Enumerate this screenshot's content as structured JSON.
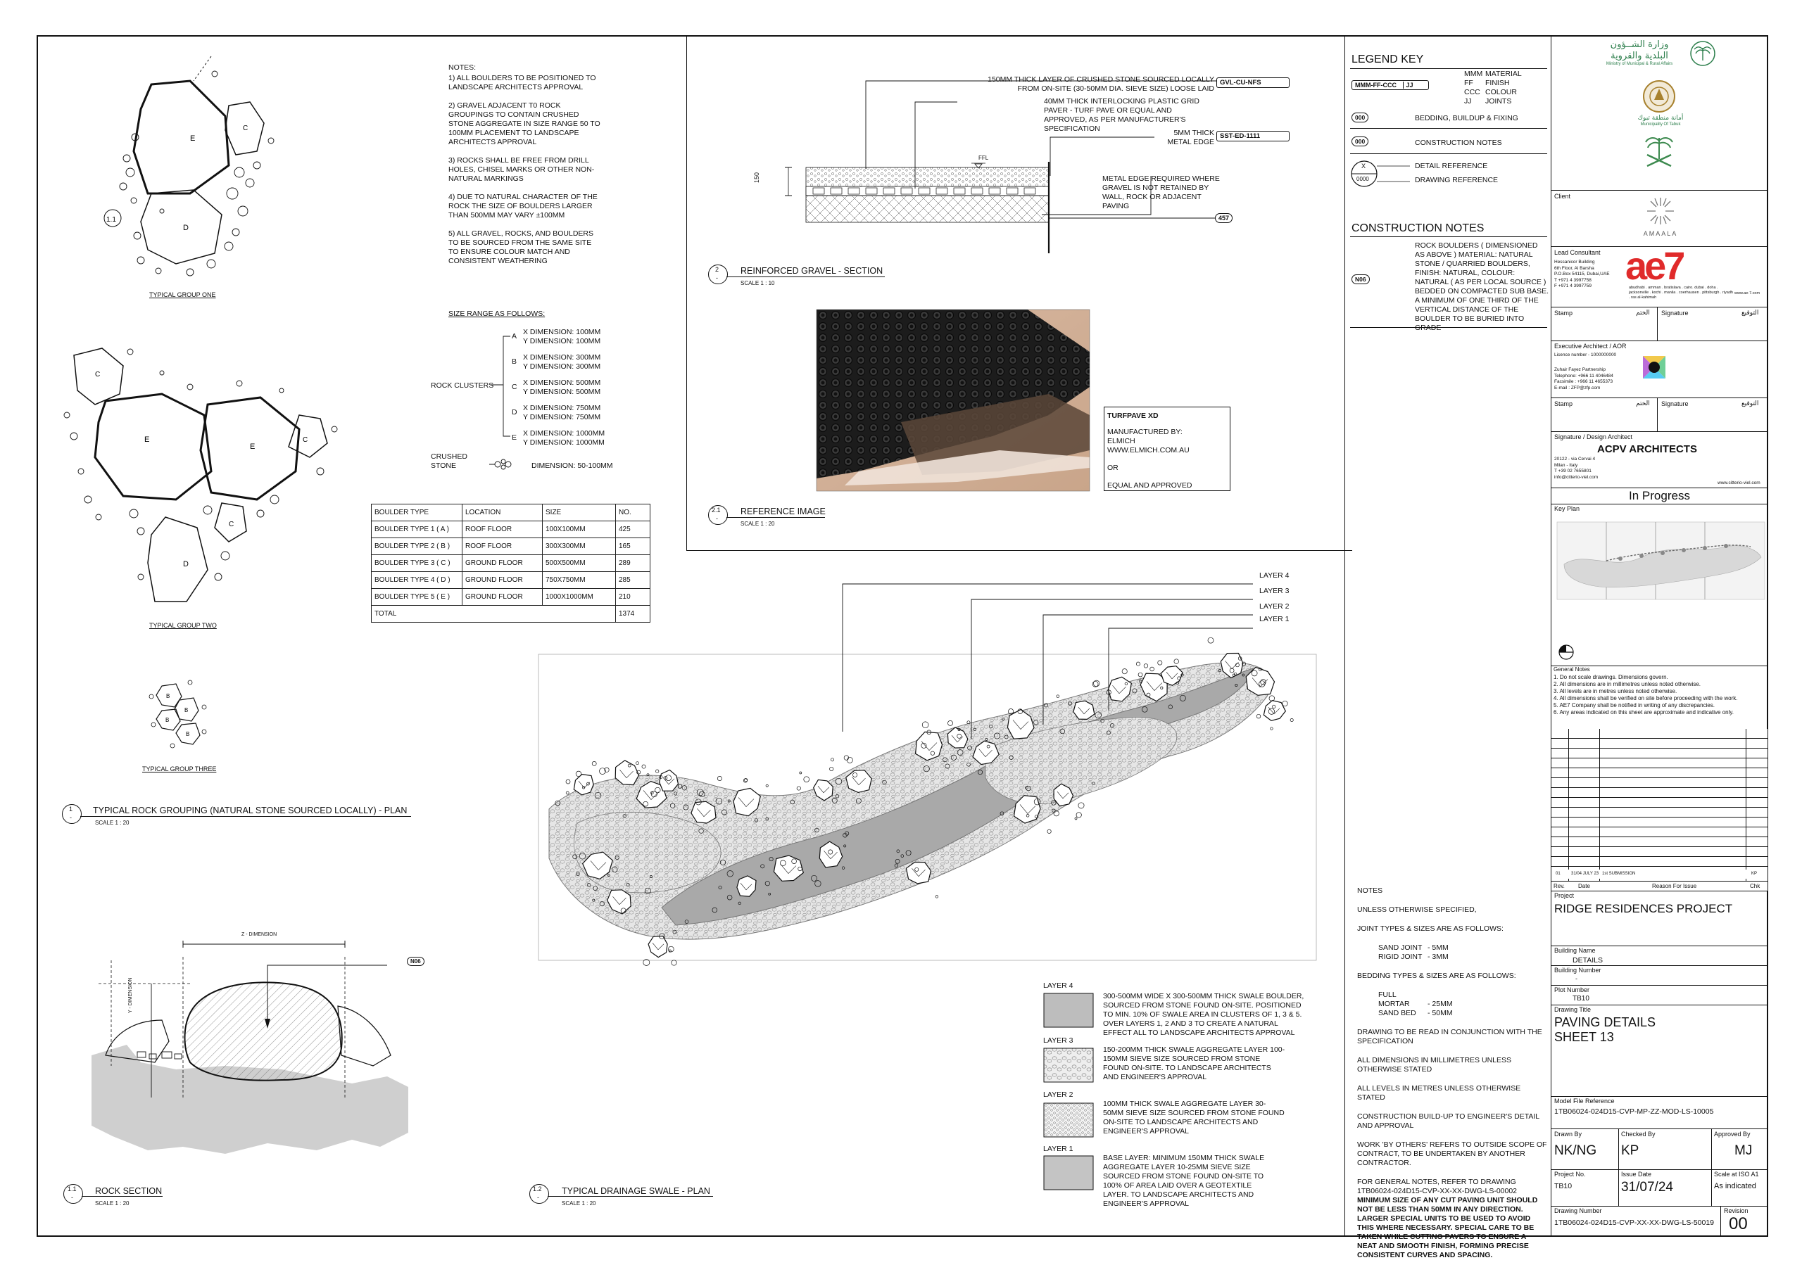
{
  "notes_plan": {
    "heading": "NOTES:",
    "items": [
      "1) ALL BOULDERS TO BE POSITIONED TO LANDSCAPE ARCHITECTS APPROVAL",
      "2) GRAVEL ADJACENT T0 ROCK GROUPINGS TO CONTAIN CRUSHED STONE AGGREGATE IN SIZE RANGE 50 TO 100mm PLACEMENT TO LANDSCAPE ARCHITECTS APPROVAL",
      "3) ROCKS SHALL BE FREE FROM DRILL HOLES, CHISEL MARKS OR OTHER NON-NATURAL MARKINGS",
      "4) DUE TO NATURAL CHARACTER OF THE ROCK THE SIZE OF BOULDERS LARGER THAN 500mm MAY VARY ±100mm",
      "5) ALL GRAVEL, ROCKS, AND BOULDERS TO BE SOURCED FROM THE SAME SITE TO ENSURE COLOUR MATCH AND CONSISTENT WEATHERING"
    ]
  },
  "size_range": {
    "heading": "SIZE RANGE AS FOLLOWS:",
    "clusters_label": "ROCK CLUSTERS",
    "crushed_label": "CRUSHED STONE",
    "crushed_dim": "DIMENSION: 50-100mm",
    "rows": [
      {
        "letter": "A",
        "x": "X DIMENSION: 100mm",
        "y": "Y DIMENSION: 100mm"
      },
      {
        "letter": "B",
        "x": "X DIMENSION: 300mm",
        "y": "Y DIMENSION: 300mm"
      },
      {
        "letter": "C",
        "x": "X DIMENSION: 500mm",
        "y": "Y DIMENSION: 500mm"
      },
      {
        "letter": "D",
        "x": "X DIMENSION: 750mm",
        "y": "Y DIMENSION: 750mm"
      },
      {
        "letter": "E",
        "x": "X DIMENSION: 1000mm",
        "y": "Y DIMENSION: 1000mm"
      }
    ]
  },
  "boulder_table": {
    "headers": [
      "BOULDER TYPE",
      "LOCATION",
      "SIZE",
      "NO."
    ],
    "rows": [
      [
        "BOULDER TYPE 1 ( A )",
        "ROOF FLOOR",
        "100X100mm",
        "425"
      ],
      [
        "BOULDER TYPE 2 ( B )",
        "ROOF FLOOR",
        "300X300mm",
        "165"
      ],
      [
        "BOULDER TYPE 3 ( C )",
        "GROUND FLOOR",
        "500X500mm",
        "289"
      ],
      [
        "BOULDER TYPE 4 ( D )",
        "GROUND FLOOR",
        "750X750mm",
        "285"
      ],
      [
        "BOULDER TYPE 5 ( E )",
        "GROUND FLOOR",
        "1000X1000mm",
        "210"
      ]
    ],
    "total_label": "TOTAL",
    "total_value": "1374"
  },
  "group_labels": {
    "one": "TYPICAL GROUP ONE",
    "two": "TYPICAL GROUP TWO",
    "three": "TYPICAL GROUP THREE"
  },
  "view_titles": {
    "v1": {
      "num": "1",
      "sub": "-",
      "title": "TYPICAL ROCK GROUPING (NATURAL STONE SOURCED LOCALLY) - PLAN",
      "scale": "SCALE   1 : 20"
    },
    "v2": {
      "num": "2",
      "sub": "-",
      "title": "REINFORCED GRAVEL - SECTION",
      "scale": "SCALE   1 : 10"
    },
    "v21": {
      "num": "2.1",
      "sub": "-",
      "title": "REFERENCE IMAGE",
      "scale": "SCALE   1 : 20"
    },
    "v11": {
      "num": "1.1",
      "sub": "-",
      "title": "ROCK SECTION",
      "scale": "SCALE   1 : 20"
    },
    "v12": {
      "num": "1.2",
      "sub": "-",
      "title": "TYPICAL DRAINAGE SWALE - PLAN",
      "scale": "SCALE   1 : 20"
    }
  },
  "section_callouts": {
    "c1": "150mm THICK LAYER OF CRUSHED STONE SOURCED LOCALLY FROM ON-SITE (30-50mm DIA. SIEVE SIZE) LOOSE LAID",
    "c1_tag": "GVL-CU-NFS",
    "c2": "40mm THICK INTERLOCKING PLASTIC GRID PAVER - TURF PAVE OR EQUAL AND APPROVED, AS PER MANUFACTURER'S SPECIFICATION",
    "c3": "5mm THICK METAL EDGE",
    "c3_tag": "SST-ED-1111",
    "c4": "METAL EDGE REQUIRED WHERE GRAVEL IS NOT RETAINED BY WALL, ROCK OR ADJACENT PAVING",
    "ffl": "FFL",
    "dim150": "150",
    "tag457": "457"
  },
  "reference_box": {
    "title": "TURFPAVE XD",
    "l1": "MANUFACTURED BY:",
    "l2": "ELMICH",
    "l3": "WWW.ELMICH.COM.AU",
    "l4": "OR",
    "l5": "EQUAL AND APPROVED"
  },
  "swale_layers": {
    "l4": "LAYER 4",
    "l3": "LAYER 3",
    "l2": "LAYER 2",
    "l1": "LAYER 1"
  },
  "layer_legend": [
    {
      "name": "LAYER 4",
      "desc": "300-500mm WIDE X 300-500mm THICK SWALE BOULDER, SOURCED FROM STONE FOUND ON-SITE. POSITIONED TO MIN. 10% OF SWALE AREA IN CLUSTERS OF 1, 3 & 5. OVER LAYERS 1, 2 AND 3 TO CREATE A NATURAL EFFECT ALL TO LANDSCAPE ARCHITECTS APPROVAL"
    },
    {
      "name": "LAYER 3",
      "desc": "150-200mm THICK SWALE AGGREGATE LAYER 100-150mm SIEVE SIZE SOURCED FROM STONE FOUND ON-SITE. TO LANDSCAPE ARCHITECTS AND ENGINEER'S APPROVAL"
    },
    {
      "name": "LAYER 2",
      "desc": "100mm THICK SWALE AGGREGATE LAYER 30-50mm SIEVE SIZE SOURCED FROM STONE FOUND ON-SITE TO LANDSCAPE ARCHITECTS AND ENGINEER'S APPROVAL"
    },
    {
      "name": "LAYER 1",
      "desc": "BASE LAYER: MINIMUM 150mm THICK SWALE AGGREGATE LAYER 10-25mm SIEVE SIZE SOURCED FROM STONE FOUND ON-SITE TO 100% OF AREA LAID OVER A GEOTEXTILE LAYER. TO LANDSCAPE ARCHITECTS AND ENGINEER'S APPROVAL"
    }
  ],
  "rock_section": {
    "z_dim": "Z - DIMENSION",
    "y_dim": "Y - DIMENSION",
    "tag": "N06"
  },
  "legend_key": {
    "heading": "LEGEND KEY",
    "code": "MMM-FF-CCC",
    "code_jj": "JJ",
    "mat_lines": [
      [
        "MMM",
        "MATERIAL"
      ],
      [
        "FF",
        "FINISH"
      ],
      [
        "CCC",
        "COLOUR"
      ],
      [
        "JJ",
        "JOINTS"
      ]
    ],
    "bedding_sym": "000",
    "bedding": "BEDDING, BUILDUP & FIXING",
    "constr_sym": "000",
    "constr": "CONSTRUCTION NOTES",
    "detail_x": "X",
    "detail_num": "0000",
    "detail_ref": "DETAIL REFERENCE",
    "drawing_ref": "DRAWING REFERENCE"
  },
  "construction_notes": {
    "heading": "CONSTRUCTION NOTES",
    "tag": "N06",
    "text": "ROCK BOULDERS ( DIMENSIONED AS ABOVE ) MATERIAL: NATURAL STONE / QUARRIED BOULDERS, FINISH: NATURAL, COLOUR: NATURAL ( AS PER LOCAL SOURCE ) BEDDED ON COMPACTED SUB BASE. A MINIMUM OF ONE THIRD OF THE VERTICAL DISTANCE OF THE BOULDER TO BE BURIED INTO GRADE"
  },
  "general_notes_lower": {
    "heading": "NOTES",
    "l1": "UNLESS OTHERWISE SPECIFIED,",
    "l2": "JOINT TYPES & SIZES ARE AS FOLLOWS:",
    "sand_joint": "SAND JOINT",
    "sand_joint_v": "- 5mm",
    "rigid_joint": "RIGID JOINT",
    "rigid_joint_v": "- 3mm",
    "l3": "BEDDING TYPES & SIZES ARE AS FOLLOWS:",
    "full_mortar": "FULL MORTAR",
    "full_mortar_v": "- 25mm",
    "sand_bed": "SAND BED",
    "sand_bed_v": "- 50mm",
    "l4": "DRAWING TO BE READ IN CONJUNCTION WITH THE SPECIFICATION",
    "l5": "ALL DIMENSIONS IN MILLIMETRES UNLESS OTHERWISE STATED",
    "l6": "ALL LEVELS IN METRES UNLESS OTHERWISE STATED",
    "l7": "CONSTRUCTION BUILD-UP TO ENGINEER'S DETAIL AND APPROVAL",
    "l8": "WORK 'BY OTHERS' REFERS TO OUTSIDE SCOPE OF CONTRACT, TO BE UNDERTAKEN BY ANOTHER CONTRACTOR.",
    "l9": "FOR GENERAL NOTES, REFER TO DRAWING 1TB06024-024D15-CVP-XX-XX-DWG-LS-00002",
    "bold": "MINIMUM SIZE OF ANY CUT PAVING UNIT SHOULD NOT BE LESS THAN 50mm IN ANY DIRECTION. LARGER SPECIAL UNITS TO BE USED TO AVOID THIS WHERE NECESSARY. SPECIAL CARE TO BE TAKEN WHILE CUTTING PAVERS TO ENSURE A NEAT AND SMOOTH FINISH, FORMING PRECISE CONSISTENT CURVES AND SPACING."
  },
  "title_block": {
    "ministry_ar": "وزارة الشــؤون البلدية والقروية",
    "ministry_en": "Ministry of Municipal & Rural Affairs",
    "municipality_en": "Municipality Of Tabuk",
    "municipality_ar": "أمانة منطقة تبوك",
    "client_label": "Client",
    "client_name": "AMAALA",
    "lead_label": "Lead Consultant",
    "lead_addr": [
      "Hessanicor Building",
      "6th Floor, Al Barsha",
      "P.O.Box 54115, Dubai,UAE",
      "T +971 4 3997758",
      "F +971 4 3997759"
    ],
    "ae7_logo": "ae7",
    "ae7_cities": "abudhabi . amman . bratislava . cairo. dubai . doha . jacksonville . kochi . manila . coerhausen . pittsburgh . riyadh . ras al-kahimah",
    "ae7_web": "www.ae-7.com",
    "stamp_label": "Stamp",
    "stamp_ar": "الختم",
    "sig_label": "Signature",
    "sig_ar": "التوقيع",
    "exec_label": "Executive Architect / AOR",
    "licence": "Licence number - 1000000000",
    "zpp_lines": [
      "Zuhair Fayez Partnership",
      "Telephone: +966 11 4046484",
      "Facsimile : +966 11 4655373",
      "E-mail : ZFP@zfp.com"
    ],
    "stamp2_label": "Stamp",
    "stamp2_ar": "الختم",
    "sig2_label": "Signature",
    "sig2_ar": "التوقيع",
    "design_label": "Signature / Design Architect",
    "design_name": "ACPV ARCHITECTS",
    "design_addr": [
      "20122 - via Cervai 4",
      "Milan - Italy",
      "T +39 02 7655801",
      "info@citterio-viel.com"
    ],
    "design_web": "www.citterio-viel.com",
    "status": "In Progress",
    "keyplan_label": "Key Plan",
    "gen_notes_heading": "General Notes",
    "gen_notes": [
      "1. Do not scale drawings. Dimensions govern.",
      "2. All dimensions are in millimetres unless noted otherwise.",
      "3. All levels are in metres unless noted otherwise.",
      "4. All dimensions shall be verified on site before proceeding with the work.",
      "5. AE7 Company shall be notified in writing of any discrepancies.",
      "6. Any areas indicated on this sheet are approximate and indicative only."
    ],
    "rev_row": [
      "01",
      "31/04 JULY 23",
      "1st SUBMISSION",
      "KP"
    ],
    "rev_head": [
      "Rev.",
      "Date",
      "Reason For Issue",
      "Chk"
    ],
    "project_label": "Project",
    "project": "RIDGE RESIDENCES PROJECT",
    "bname_label": "Building Name",
    "bname": "DETAILS",
    "bnum_label": "Building Number",
    "bnum": "-",
    "plot_label": "Plot Number",
    "plot": "TB10",
    "dtitle_label": "Drawing Title",
    "dtitle1": "PAVING DETAILS",
    "dtitle2": "SHEET 13",
    "model_label": "Model File Reference",
    "model": "1TB06024-024D15-CVP-MP-ZZ-MOD-LS-10005",
    "drawn_label": "Drawn By",
    "drawn": "NK/NG",
    "checked_label": "Checked By",
    "checked": "KP",
    "approved_label": "Approved By",
    "approved": "MJ",
    "projno_label": "Project No.",
    "projno": "TB10",
    "issue_label": "Issue Date",
    "issue": "31/07/24",
    "scale_label": "Scale at ISO A1",
    "scale": "As indicated",
    "dwgno_label": "Drawing Number",
    "dwgno": "1TB06024-024D15-CVP-XX-XX-DWG-LS-50019",
    "rev_label": "Revision",
    "rev": "00"
  }
}
